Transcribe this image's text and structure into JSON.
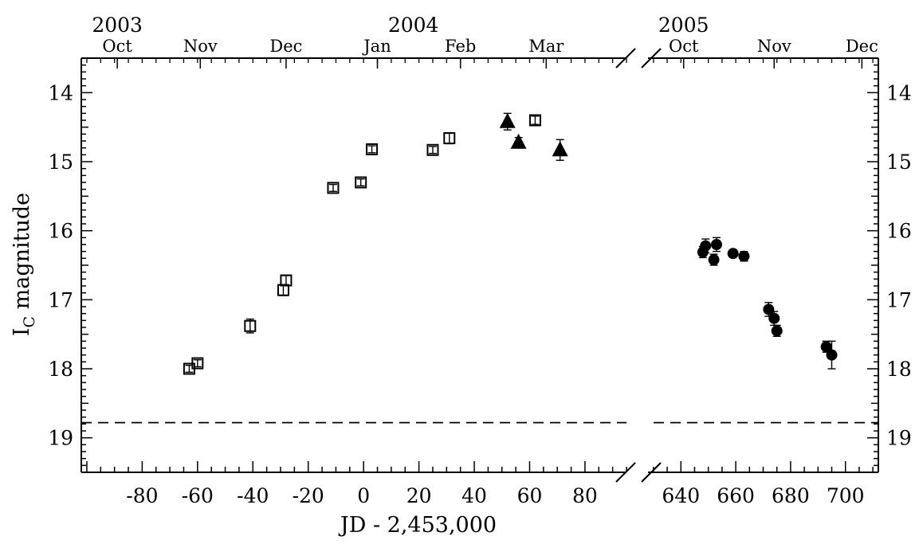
{
  "chart_data": {
    "type": "scatter",
    "xlabel": "JD - 2,453,000",
    "ylabel": "I",
    "ylabel_sub": "C",
    "ylabel_rest": " magnitude",
    "ylim": [
      19.5,
      13.5
    ],
    "y_inverted": true,
    "broken_x_axis": true,
    "x_segments": [
      {
        "xlim": [
          -102,
          95
        ],
        "ticks": [
          -80,
          -60,
          -40,
          -20,
          0,
          20,
          40,
          60,
          80
        ]
      },
      {
        "xlim": [
          628,
          712
        ],
        "ticks": [
          640,
          660,
          680,
          700
        ]
      }
    ],
    "yticks": [
      14,
      15,
      16,
      17,
      18,
      19
    ],
    "top_axis": {
      "years": [
        {
          "label": "2003",
          "x": -89
        },
        {
          "label": "2004",
          "x": 18
        },
        {
          "label": "2005",
          "x": 641
        }
      ],
      "months": [
        {
          "label": "Oct",
          "x": -89
        },
        {
          "label": "Nov",
          "x": -59
        },
        {
          "label": "Dec",
          "x": -28
        },
        {
          "label": "Jan",
          "x": 5
        },
        {
          "label": "Feb",
          "x": 35
        },
        {
          "label": "Mar",
          "x": 66
        },
        {
          "label": "Oct",
          "x": 641
        },
        {
          "label": "Nov",
          "x": 674
        },
        {
          "label": "Dec",
          "x": 706
        }
      ]
    },
    "reference_line": {
      "y": 18.78,
      "style": "dashed"
    },
    "series": [
      {
        "marker": "open-square",
        "points": [
          {
            "x": -63,
            "y": 18.0,
            "err": 0.05
          },
          {
            "x": -60,
            "y": 17.92,
            "err": 0.05
          },
          {
            "x": -41,
            "y": 17.38,
            "err": 0.1
          },
          {
            "x": -29,
            "y": 16.86,
            "err": 0.08
          },
          {
            "x": -28,
            "y": 16.72,
            "err": 0.07
          },
          {
            "x": -11,
            "y": 15.38,
            "err": 0.05
          },
          {
            "x": -1,
            "y": 15.3,
            "err": 0.05
          },
          {
            "x": 3,
            "y": 14.82,
            "err": 0.05
          },
          {
            "x": 25,
            "y": 14.83,
            "err": 0.05
          },
          {
            "x": 31,
            "y": 14.66,
            "err": 0.08
          },
          {
            "x": 62,
            "y": 14.4,
            "err": 0.06
          }
        ]
      },
      {
        "marker": "filled-triangle",
        "points": [
          {
            "x": 52,
            "y": 14.42,
            "err": 0.12
          },
          {
            "x": 56,
            "y": 14.72,
            "err": 0.07
          },
          {
            "x": 71,
            "y": 14.83,
            "err": 0.15
          }
        ]
      },
      {
        "marker": "filled-circle",
        "points": [
          {
            "x": 648,
            "y": 16.31,
            "err": 0.08
          },
          {
            "x": 649,
            "y": 16.22,
            "err": 0.1
          },
          {
            "x": 652,
            "y": 16.42,
            "err": 0.08
          },
          {
            "x": 653,
            "y": 16.2,
            "err": 0.1
          },
          {
            "x": 659,
            "y": 16.33,
            "err": 0.05
          },
          {
            "x": 663,
            "y": 16.37,
            "err": 0.07
          },
          {
            "x": 672,
            "y": 17.14,
            "err": 0.1
          },
          {
            "x": 674,
            "y": 17.27,
            "err": 0.1
          },
          {
            "x": 675,
            "y": 17.45,
            "err": 0.08
          },
          {
            "x": 693,
            "y": 17.68,
            "err": 0.08
          },
          {
            "x": 695,
            "y": 17.8,
            "err": 0.2
          }
        ]
      }
    ]
  }
}
